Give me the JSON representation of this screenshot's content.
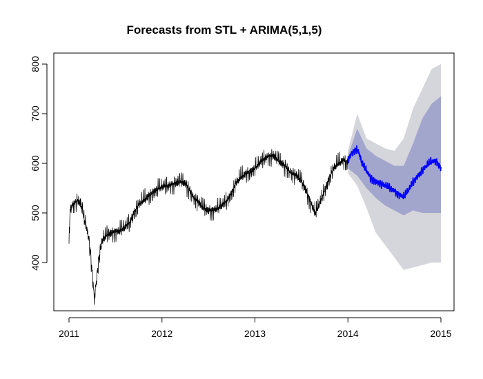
{
  "chart_data": {
    "type": "line",
    "title": "Forecasts from STL +  ARIMA(5,1,5)",
    "xlabel": "",
    "ylabel": "",
    "xlim": [
      2011,
      2015
    ],
    "ylim": [
      300,
      810
    ],
    "x_ticks": [
      2011,
      2012,
      2013,
      2014,
      2015
    ],
    "x_tick_labels": [
      "2011",
      "2012",
      "2013",
      "2014",
      "2015"
    ],
    "y_ticks": [
      400,
      500,
      600,
      700,
      800
    ],
    "y_tick_labels": [
      "400",
      "500",
      "600",
      "700",
      "800"
    ],
    "grid": false,
    "legend": "none",
    "colors": {
      "history": "#000000",
      "forecast": "#0000ff",
      "band80": "#a3a6cc",
      "band95": "#d5d5dc",
      "axis": "#000000"
    },
    "series": [
      {
        "role": "history",
        "x": [
          2011.0,
          2011.01,
          2011.03,
          2011.06,
          2011.09,
          2011.12,
          2011.14,
          2011.16,
          2011.19,
          2011.22,
          2011.24,
          2011.26,
          2011.27,
          2011.28,
          2011.3,
          2011.33,
          2011.36,
          2011.4,
          2011.45,
          2011.5,
          2011.55,
          2011.6,
          2011.65,
          2011.7,
          2011.75,
          2011.8,
          2011.85,
          2011.9,
          2011.95,
          2012.0,
          2012.05,
          2012.1,
          2012.15,
          2012.2,
          2012.25,
          2012.3,
          2012.35,
          2012.4,
          2012.45,
          2012.5,
          2012.55,
          2012.6,
          2012.65,
          2012.7,
          2012.75,
          2012.8,
          2012.85,
          2012.9,
          2012.95,
          2013.0,
          2013.05,
          2013.1,
          2013.15,
          2013.2,
          2013.25,
          2013.3,
          2013.35,
          2013.4,
          2013.45,
          2013.5,
          2013.55,
          2013.6,
          2013.65,
          2013.7,
          2013.75,
          2013.8,
          2013.85,
          2013.9,
          2013.95,
          2014.0
        ],
        "values": [
          435,
          505,
          515,
          520,
          525,
          520,
          510,
          490,
          470,
          440,
          400,
          360,
          330,
          340,
          375,
          420,
          445,
          455,
          460,
          462,
          465,
          470,
          480,
          500,
          515,
          525,
          532,
          540,
          548,
          552,
          555,
          557,
          560,
          565,
          560,
          545,
          530,
          520,
          510,
          505,
          505,
          510,
          515,
          525,
          540,
          560,
          572,
          578,
          582,
          590,
          600,
          610,
          615,
          615,
          608,
          598,
          590,
          580,
          575,
          565,
          545,
          520,
          500,
          520,
          545,
          570,
          590,
          600,
          605,
          600
        ]
      },
      {
        "role": "forecast",
        "x": [
          2014.0,
          2014.03,
          2014.06,
          2014.09,
          2014.12,
          2014.15,
          2014.2,
          2014.25,
          2014.3,
          2014.35,
          2014.4,
          2014.45,
          2014.5,
          2014.55,
          2014.6,
          2014.65,
          2014.7,
          2014.75,
          2014.8,
          2014.85,
          2014.9,
          2014.95,
          2015.0
        ],
        "values": [
          605,
          618,
          625,
          630,
          620,
          600,
          585,
          570,
          565,
          560,
          555,
          550,
          545,
          538,
          532,
          545,
          562,
          575,
          585,
          595,
          603,
          605,
          590
        ]
      }
    ],
    "bands": {
      "x": [
        2014.0,
        2014.1,
        2014.2,
        2014.3,
        2014.4,
        2014.5,
        2014.6,
        2014.7,
        2014.8,
        2014.9,
        2015.0
      ],
      "lo80": [
        590,
        575,
        550,
        530,
        515,
        505,
        495,
        505,
        500,
        500,
        500
      ],
      "hi80": [
        615,
        670,
        630,
        615,
        605,
        595,
        595,
        640,
        690,
        720,
        735
      ],
      "lo95": [
        580,
        555,
        510,
        460,
        435,
        410,
        385,
        390,
        395,
        400,
        400
      ],
      "hi95": [
        625,
        700,
        650,
        640,
        630,
        625,
        650,
        710,
        750,
        790,
        800
      ]
    }
  }
}
